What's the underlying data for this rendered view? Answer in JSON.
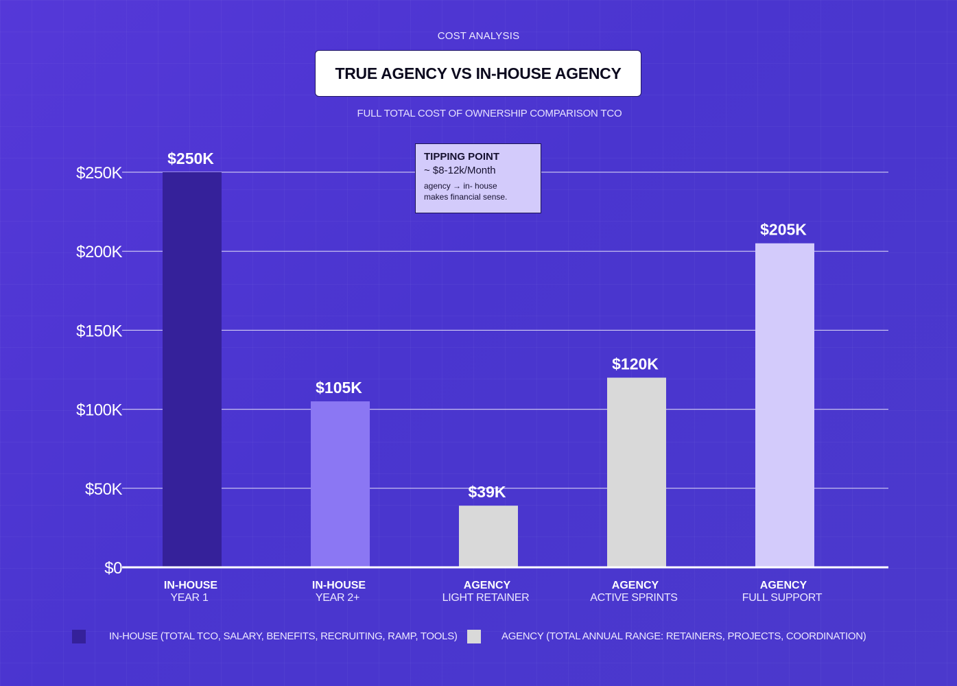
{
  "header": {
    "eyebrow": "COST ANALYSIS",
    "title": "TRUE AGENCY VS IN-HOUSE AGENCY",
    "subtitle": "FULL TOTAL COST OF OWNERSHIP COMPARISON TCO"
  },
  "callout": {
    "title": "TIPPING POINT",
    "value": "~ $8-12k/Month",
    "note_line1": "agency → in- house",
    "note_line2": "makes financial sense."
  },
  "legend": {
    "inhouse_label": "IN-HOUSE (TOTAL TCO, SALARY, BENEFITS, RECRUITING, RAMP, TOOLS)",
    "agency_label": "AGENCY (TOTAL ANNUAL RANGE: RETAINERS, PROJECTS, COORDINATION)",
    "inhouse_color": "#35219a",
    "agency_color": "#d9d9d9"
  },
  "chart_data": {
    "type": "bar",
    "title": "TRUE AGENCY VS IN-HOUSE AGENCY",
    "subtitle": "FULL TOTAL COST OF OWNERSHIP COMPARISON TCO",
    "xlabel": "",
    "ylabel": "",
    "ylim": [
      0,
      250000
    ],
    "yticks": [
      0,
      50000,
      100000,
      150000,
      200000,
      250000
    ],
    "ytick_labels": [
      "$0",
      "$50K",
      "$100K",
      "$150K",
      "$200K",
      "$250K"
    ],
    "grid": true,
    "legend_position": "bottom",
    "categories": [
      {
        "line1": "IN-HOUSE",
        "line2": "YEAR 1"
      },
      {
        "line1": "IN-HOUSE",
        "line2": "YEAR 2+"
      },
      {
        "line1": "AGENCY",
        "line2": "LIGHT RETAINER"
      },
      {
        "line1": "AGENCY",
        "line2": "ACTIVE SPRINTS"
      },
      {
        "line1": "AGENCY",
        "line2": "FULL SUPPORT"
      }
    ],
    "values": [
      250000,
      105000,
      39000,
      120000,
      205000
    ],
    "value_labels": [
      "$250K",
      "$105K",
      "$39K",
      "$120K",
      "$205K"
    ],
    "bar_colors": [
      "#35219a",
      "#8b77f3",
      "#d9d9d9",
      "#d9d9d9",
      "#d3cbfb"
    ]
  }
}
